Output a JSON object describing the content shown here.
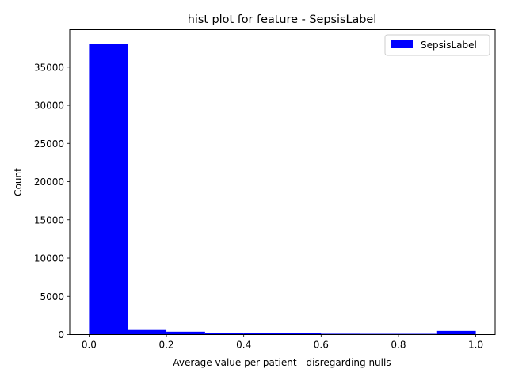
{
  "chart_data": {
    "type": "bar",
    "title": "hist plot for feature -  SepsisLabel",
    "xlabel": "Average value per patient - disregarding nulls",
    "ylabel": "Count",
    "xlim": [
      -0.05,
      1.05
    ],
    "ylim": [
      0,
      39900
    ],
    "xticks": [
      "0.0",
      "0.2",
      "0.4",
      "0.6",
      "0.8",
      "1.0"
    ],
    "xtick_values": [
      0.0,
      0.2,
      0.4,
      0.6,
      0.8,
      1.0
    ],
    "yticks": [
      "0",
      "5000",
      "10000",
      "15000",
      "20000",
      "25000",
      "30000",
      "35000"
    ],
    "ytick_values": [
      0,
      5000,
      10000,
      15000,
      20000,
      25000,
      30000,
      35000
    ],
    "bin_edges": [
      0.0,
      0.1,
      0.2,
      0.3,
      0.4,
      0.5,
      0.6,
      0.7,
      0.8,
      0.9,
      1.0
    ],
    "series": [
      {
        "name": "SepsisLabel",
        "color": "#0000ff",
        "values": [
          38000,
          600,
          380,
          220,
          200,
          180,
          110,
          100,
          100,
          480
        ]
      }
    ],
    "legend_position": "top-right",
    "grid": false
  }
}
